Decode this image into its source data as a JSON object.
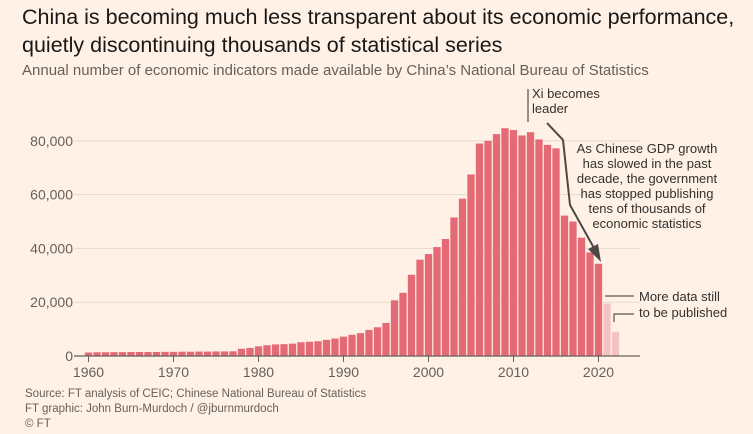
{
  "header": {
    "title": "China is becoming much less transparent about its economic performance, quietly discontinuing thousands of statistical series",
    "subtitle": "Annual number of economic indicators made available by China’s National Bureau of Statistics"
  },
  "footer": {
    "source": "Source: FT analysis of CEIC; Chinese National Bureau of Statistics",
    "graphic": "FT graphic: John Burn-Murdoch / @jburnmurdoch",
    "copyright": "© FT"
  },
  "annotations": {
    "xi_line1": "Xi becomes",
    "xi_line2": "leader",
    "gdp_lines": [
      "As Chinese GDP growth",
      "has slowed in the past",
      "decade, the government",
      "has stopped publishing",
      "tens of thousands of",
      "economic statistics"
    ],
    "more_line1": "More data still",
    "more_line2": "to be published"
  },
  "colors": {
    "bar": "#e46a76",
    "bar_faded": "#f3c3c4",
    "background": "#fff1e5",
    "grid": "#e6d9ce",
    "axis": "#66605c",
    "text": "#33302e"
  },
  "chart_data": {
    "type": "bar",
    "x": [
      1960,
      1961,
      1962,
      1963,
      1964,
      1965,
      1966,
      1967,
      1968,
      1969,
      1970,
      1971,
      1972,
      1973,
      1974,
      1975,
      1976,
      1977,
      1978,
      1979,
      1980,
      1981,
      1982,
      1983,
      1984,
      1985,
      1986,
      1987,
      1988,
      1989,
      1990,
      1991,
      1992,
      1993,
      1994,
      1995,
      1996,
      1997,
      1998,
      1999,
      2000,
      2001,
      2002,
      2003,
      2004,
      2005,
      2006,
      2007,
      2008,
      2009,
      2010,
      2011,
      2012,
      2013,
      2014,
      2015,
      2016,
      2017,
      2018,
      2019,
      2020,
      2021,
      2022
    ],
    "values": [
      1300,
      1400,
      1400,
      1450,
      1450,
      1500,
      1500,
      1500,
      1500,
      1550,
      1550,
      1600,
      1600,
      1650,
      1650,
      1700,
      1700,
      1750,
      2700,
      3000,
      3600,
      4000,
      4300,
      4400,
      4600,
      5100,
      5300,
      5500,
      6000,
      6500,
      7200,
      7900,
      8500,
      9700,
      10700,
      12300,
      20700,
      23500,
      30200,
      35800,
      37900,
      40500,
      43500,
      51500,
      58500,
      67500,
      79000,
      80000,
      82500,
      84700,
      84000,
      82000,
      83200,
      80500,
      78500,
      77200,
      52200,
      50000,
      44000,
      38500,
      34300,
      19500,
      9000
    ],
    "faded_from_index": 61,
    "xlim": [
      1959,
      2023
    ],
    "ylim": [
      0,
      87000
    ],
    "yticks": [
      0,
      20000,
      40000,
      60000,
      80000
    ],
    "ytick_labels": [
      "0",
      "20,000",
      "40,000",
      "60,000",
      "80,000"
    ],
    "xticks": [
      1960,
      1970,
      1980,
      1990,
      2000,
      2010,
      2020
    ],
    "xtick_labels": [
      "1960",
      "1970",
      "1980",
      "1990",
      "2000",
      "2010",
      "2020"
    ],
    "grid": true,
    "xlabel": "",
    "ylabel": ""
  }
}
